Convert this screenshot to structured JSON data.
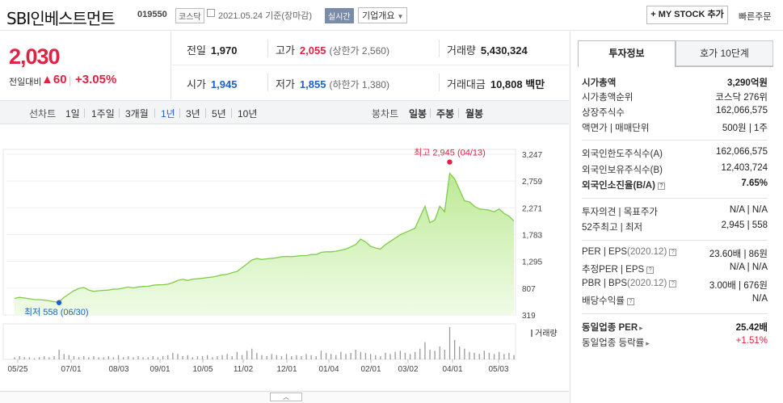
{
  "header": {
    "stock_name": "SBI인베스트먼트",
    "stock_code": "019550",
    "market_badge": "코스닥",
    "date_text": "2021.05.24 기준(장마감)",
    "realtime_badge": "실시간",
    "company_info_label": "기업개요",
    "mystock_button": "+ MY STOCK 추가",
    "quick_order": "빠른주문"
  },
  "price": {
    "current": "2,030",
    "change_label": "전일대비",
    "change_arrow": "▲",
    "change_value": "60",
    "change_pct": "+3.05%"
  },
  "summary": {
    "prev_label": "전일",
    "prev_value": "1,970",
    "high_label": "고가",
    "high_value": "2,055",
    "upper_limit": "(상한가 2,560)",
    "volume_label": "거래량",
    "volume_value": "5,430,324",
    "open_label": "시가",
    "open_value": "1,945",
    "low_label": "저가",
    "low_value": "1,855",
    "lower_limit": "(하한가 1,380)",
    "amount_label": "거래대금",
    "amount_value": "10,808 백만"
  },
  "tabs": {
    "line_label": "선차트",
    "periods": [
      "1일",
      "1주일",
      "3개월",
      "1년",
      "3년",
      "5년",
      "10년"
    ],
    "selected_index": 3,
    "candle_label": "봉차트",
    "candles": [
      "일봉",
      "주봉",
      "월봉"
    ]
  },
  "chart_data": {
    "type": "area",
    "y_ticks": [
      "3,247",
      "2,759",
      "2,271",
      "1,783",
      "1,295",
      "807",
      "319"
    ],
    "ylim": [
      319,
      3247
    ],
    "x_ticks": [
      "05/25",
      "07/01",
      "08/03",
      "09/01",
      "10/05",
      "11/02",
      "12/01",
      "01/04",
      "02/01",
      "03/02",
      "04/01",
      "05/03"
    ],
    "max_label": "최고 2,945 (04/13)",
    "min_label": "최저 558 (06/30)",
    "volume_label": "거래량",
    "price_series": [
      620,
      640,
      628,
      615,
      600,
      598,
      590,
      578,
      560,
      558,
      640,
      702,
      760,
      800,
      820,
      772,
      748,
      760,
      768,
      772,
      790,
      792,
      810,
      828,
      812,
      830,
      838,
      842,
      860,
      868,
      870,
      880,
      908,
      948,
      968,
      948,
      972,
      978,
      988,
      1000,
      1010,
      1030,
      1050,
      1060,
      1090,
      1110,
      1180,
      1250,
      1320,
      1348,
      1330,
      1342,
      1350,
      1360,
      1380,
      1385,
      1380,
      1390,
      1400,
      1400,
      1420,
      1420,
      1460,
      1470,
      1470,
      1480,
      1500,
      1520,
      1560,
      1600,
      1700,
      1650,
      1570,
      1540,
      1520,
      1600,
      1660,
      1720,
      1780,
      1820,
      1860,
      1900,
      2100,
      2300,
      2000,
      2050,
      2300,
      2200,
      2900,
      2800,
      2600,
      2400,
      2380,
      2300,
      2250,
      2240,
      2230,
      2200,
      2250,
      2170,
      2120,
      2030
    ]
  },
  "panel": {
    "tab_active": "투자정보",
    "tab_other": "호가 10단계",
    "market_cap_label": "시가총액",
    "market_cap_value": "3,290억원",
    "cap_rank_label": "시가총액순위",
    "cap_rank_value": "코스닥 276위",
    "shares_label": "상장주식수",
    "shares_value": "162,066,575",
    "par_label": "액면가 | 매매단위",
    "par_value": "500원 | 1주",
    "foreign_limit_label": "외국인한도주식수(A)",
    "foreign_limit_value": "162,066,575",
    "foreign_own_label": "외국인보유주식수(B)",
    "foreign_own_value": "12,403,724",
    "foreign_ratio_label": "외국인소진율(B/A)",
    "foreign_ratio_value": "7.65%",
    "opinion_label": "투자의견 | 목표주가",
    "opinion_value": "N/A | N/A",
    "week52_label": "52주최고 | 최저",
    "week52_value": "2,945 | 558",
    "per_label": "PER | EPS",
    "per_sub": "(2020.12)",
    "per_value": "23.60배 | 86원",
    "est_per_label": "추정PER | EPS",
    "est_per_value": "N/A | N/A",
    "pbr_label": "PBR | BPS",
    "pbr_sub": "(2020.12)",
    "pbr_value": "3.00배 | 676원",
    "dividend_label": "배당수익률",
    "dividend_value": "N/A",
    "sector_per_label": "동일업종 PER",
    "sector_per_value": "25.42배",
    "sector_rate_label": "동일업종 등락률",
    "sector_rate_value": "+1.51%"
  }
}
